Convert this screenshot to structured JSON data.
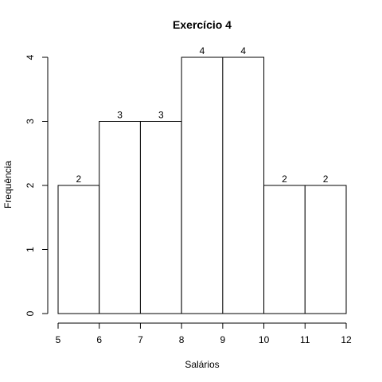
{
  "chart_data": {
    "type": "bar",
    "title": "Exercício 4",
    "xlabel": "Salários",
    "ylabel": "Frequência",
    "bins": [
      {
        "x0": 5,
        "x1": 6,
        "value": 2
      },
      {
        "x0": 6,
        "x1": 7,
        "value": 3
      },
      {
        "x0": 7,
        "x1": 8,
        "value": 3
      },
      {
        "x0": 8,
        "x1": 9,
        "value": 4
      },
      {
        "x0": 9,
        "x1": 10,
        "value": 4
      },
      {
        "x0": 10,
        "x1": 11,
        "value": 2
      },
      {
        "x0": 11,
        "x1": 12,
        "value": 2
      }
    ],
    "x_ticks": [
      "5",
      "6",
      "7",
      "8",
      "9",
      "10",
      "11",
      "12"
    ],
    "y_ticks": [
      "0",
      "1",
      "2",
      "3",
      "4"
    ],
    "xlim": [
      5,
      12
    ],
    "ylim": [
      0,
      4
    ],
    "grid": false,
    "show_data_labels": true
  }
}
